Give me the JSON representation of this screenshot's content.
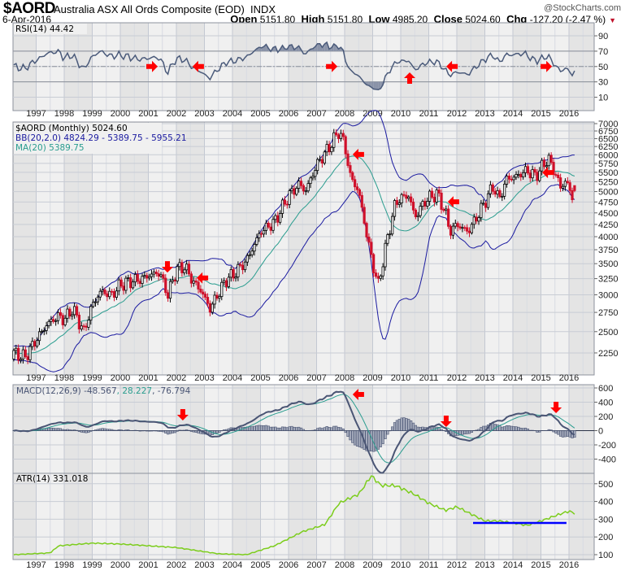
{
  "header": {
    "symbol": "$AORD",
    "name": "Australia ASX All Ords Composite (EOD)",
    "exchange": "INDX",
    "date": "6-Apr-2016",
    "watermark": "@StockCharts.com",
    "open_label": "Open",
    "open": "5151.80",
    "high_label": "High",
    "high": "5151.80",
    "low_label": "Low",
    "low": "4985.20",
    "close_label": "Close",
    "close": "5024.60",
    "chg_label": "Chg",
    "chg": "-127.20 (-2.47 %)"
  },
  "legends": {
    "rsi": "RSI(14) 44.42",
    "price": "$AORD (Monthly) 5024.60",
    "bb": "BB(20,2.0) 4824.29 - 5389.75 - 5955.21",
    "ma": "MA(20) 5389.75",
    "macd_name": "MACD(12,26,9)",
    "macd_v1": "-48.567",
    "macd_v2": "28.227",
    "macd_v3": "-76.794",
    "atr": "ATR(14) 331.018"
  },
  "colors": {
    "up": "#000000",
    "down": "#d0102a",
    "bb": "#1a1aa0",
    "ma": "#2a9d8f",
    "macd": "#4a5574",
    "signal": "#2a9d8f",
    "atr": "#7ccd1c",
    "arrow": "#ff0000",
    "atr_level": "#0000ff"
  },
  "chart_data": {
    "type": "line",
    "x_years": [
      "1997",
      "1998",
      "1999",
      "2000",
      "2001",
      "2002",
      "2003",
      "2004",
      "2005",
      "2006",
      "2007",
      "2008",
      "2009",
      "2010",
      "2011",
      "2012",
      "2013",
      "2014",
      "2015",
      "2016"
    ],
    "price": {
      "type": "candlestick",
      "scale": "log",
      "ylim": [
        2050,
        7000
      ],
      "yticks": [
        2250,
        2500,
        2750,
        3000,
        3250,
        3500,
        3750,
        4000,
        4250,
        4500,
        4750,
        5000,
        5250,
        5500,
        5750,
        6000,
        6250,
        6500,
        6750,
        7000
      ],
      "close_keypoints": [
        [
          1996.2,
          2250
        ],
        [
          1996.6,
          2200
        ],
        [
          1997.0,
          2400
        ],
        [
          1997.4,
          2600
        ],
        [
          1997.8,
          2700
        ],
        [
          1998.0,
          2650
        ],
        [
          1998.3,
          2800
        ],
        [
          1998.7,
          2500
        ],
        [
          1999.0,
          2850
        ],
        [
          1999.3,
          3050
        ],
        [
          1999.7,
          3000
        ],
        [
          2000.0,
          3150
        ],
        [
          2000.3,
          3200
        ],
        [
          2000.8,
          3250
        ],
        [
          2001.0,
          3300
        ],
        [
          2001.4,
          3350
        ],
        [
          2001.7,
          3000
        ],
        [
          2002.0,
          3400
        ],
        [
          2002.3,
          3450
        ],
        [
          2002.6,
          3200
        ],
        [
          2002.9,
          3050
        ],
        [
          2003.2,
          2800
        ],
        [
          2003.4,
          2950
        ],
        [
          2003.8,
          3250
        ],
        [
          2004.0,
          3300
        ],
        [
          2004.5,
          3550
        ],
        [
          2005.0,
          4100
        ],
        [
          2005.5,
          4300
        ],
        [
          2006.0,
          4900
        ],
        [
          2006.4,
          5200
        ],
        [
          2006.6,
          5000
        ],
        [
          2007.0,
          5700
        ],
        [
          2007.5,
          6300
        ],
        [
          2007.8,
          6750
        ],
        [
          2008.0,
          6300
        ],
        [
          2008.2,
          5400
        ],
        [
          2008.5,
          5000
        ],
        [
          2008.8,
          4000
        ],
        [
          2009.0,
          3500
        ],
        [
          2009.2,
          3150
        ],
        [
          2009.5,
          3900
        ],
        [
          2009.8,
          4700
        ],
        [
          2010.0,
          4850
        ],
        [
          2010.3,
          4900
        ],
        [
          2010.5,
          4400
        ],
        [
          2010.9,
          4800
        ],
        [
          2011.3,
          4950
        ],
        [
          2011.6,
          4500
        ],
        [
          2011.75,
          4100
        ],
        [
          2012.0,
          4250
        ],
        [
          2012.4,
          4100
        ],
        [
          2012.8,
          4500
        ],
        [
          2013.3,
          5150
        ],
        [
          2013.5,
          4800
        ],
        [
          2013.8,
          5350
        ],
        [
          2014.0,
          5350
        ],
        [
          2014.5,
          5550
        ],
        [
          2014.8,
          5400
        ],
        [
          2015.0,
          5600
        ],
        [
          2015.25,
          5900
        ],
        [
          2015.5,
          5500
        ],
        [
          2015.7,
          5100
        ],
        [
          2015.9,
          5300
        ],
        [
          2016.1,
          4850
        ],
        [
          2016.25,
          5025
        ]
      ],
      "last_bar": {
        "open": 5151.8,
        "high": 5151.8,
        "low": 4985.2,
        "close": 5024.6
      },
      "overlays": [
        "BB(20,2.0)",
        "MA(20)"
      ],
      "annotations": [
        {
          "t": 2001.68,
          "v": 3445,
          "dir": "down"
        },
        {
          "t": 2002.93,
          "v": 3260,
          "dir": "left"
        },
        {
          "t": 2008.49,
          "v": 6010,
          "dir": "left"
        },
        {
          "t": 2011.88,
          "v": 4755,
          "dir": "left"
        },
        {
          "t": 2015.25,
          "v": 5495,
          "dir": "left"
        }
      ]
    },
    "rsi": {
      "period": 14,
      "ylim": [
        0,
        100
      ],
      "yticks": [
        10,
        30,
        50,
        70,
        90
      ],
      "levels": [
        30,
        50,
        70
      ],
      "annotations": [
        {
          "t": 2001.13,
          "v": 50,
          "dir": "right"
        },
        {
          "t": 2002.78,
          "v": 50,
          "dir": "left"
        },
        {
          "t": 2007.54,
          "v": 50,
          "dir": "right"
        },
        {
          "t": 2010.32,
          "v": 35,
          "dir": "up"
        },
        {
          "t": 2011.83,
          "v": 50,
          "dir": "left"
        },
        {
          "t": 2015.19,
          "v": 50,
          "dir": "right"
        }
      ]
    },
    "macd": {
      "params": [
        12,
        26,
        9
      ],
      "ylim": [
        -580,
        660
      ],
      "yticks": [
        -400,
        -200,
        0,
        200,
        400,
        600
      ],
      "annotations": [
        {
          "t": 2002.23,
          "v": 223,
          "dir": "down"
        },
        {
          "t": 2008.49,
          "v": 509,
          "dir": "left"
        },
        {
          "t": 2011.62,
          "v": 131,
          "dir": "down"
        },
        {
          "t": 2015.54,
          "v": 326,
          "dir": "down"
        }
      ]
    },
    "atr": {
      "period": 14,
      "ylim": [
        75,
        580
      ],
      "yticks": [
        100,
        200,
        300,
        400,
        500
      ],
      "keypoints": [
        [
          1996.2,
          100
        ],
        [
          1997.5,
          110
        ],
        [
          1997.8,
          150
        ],
        [
          1999.0,
          165
        ],
        [
          2000.0,
          160
        ],
        [
          2001.0,
          150
        ],
        [
          2002.0,
          140
        ],
        [
          2003.5,
          105
        ],
        [
          2004.5,
          100
        ],
        [
          2005.5,
          150
        ],
        [
          2006.5,
          230
        ],
        [
          2007.3,
          270
        ],
        [
          2007.8,
          390
        ],
        [
          2008.2,
          420
        ],
        [
          2008.5,
          440
        ],
        [
          2008.95,
          545
        ],
        [
          2009.3,
          490
        ],
        [
          2009.8,
          490
        ],
        [
          2010.5,
          440
        ],
        [
          2011.0,
          390
        ],
        [
          2011.6,
          350
        ],
        [
          2012.0,
          370
        ],
        [
          2012.5,
          330
        ],
        [
          2013.0,
          290
        ],
        [
          2013.5,
          290
        ],
        [
          2014.0,
          280
        ],
        [
          2014.5,
          265
        ],
        [
          2015.0,
          290
        ],
        [
          2015.7,
          330
        ],
        [
          2016.0,
          345
        ],
        [
          2016.25,
          331
        ]
      ],
      "level_line": {
        "t_start": 2012.58,
        "t_end": 2015.91,
        "v": 279
      }
    }
  }
}
